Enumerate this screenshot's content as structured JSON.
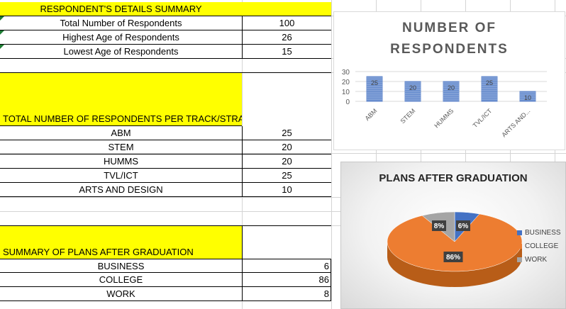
{
  "summary": {
    "header": "RESPONDENT'S DETAILS SUMMARY",
    "rows": [
      {
        "label": "Total Number of Respondents",
        "value": "100"
      },
      {
        "label": "Highest Age of Respondents",
        "value": "26"
      },
      {
        "label": "Lowest Age of Respondents",
        "value": "15"
      }
    ]
  },
  "track": {
    "header": "TOTAL NUMBER OF RESPONDENTS PER TRACK/STRAND",
    "rows": [
      {
        "label": "ABM",
        "value": "25"
      },
      {
        "label": "STEM",
        "value": "20"
      },
      {
        "label": "HUMMS",
        "value": "20"
      },
      {
        "label": "TVL/ICT",
        "value": "25"
      },
      {
        "label": "ARTS AND DESIGN",
        "value": "10"
      }
    ]
  },
  "plans": {
    "header": "SUMMARY OF PLANS AFTER GRADUATION",
    "rows": [
      {
        "label": "BUSINESS",
        "value": "6"
      },
      {
        "label": "COLLEGE",
        "value": "86"
      },
      {
        "label": "WORK",
        "value": "8"
      }
    ]
  },
  "colors": {
    "header_fill": "#ffff00",
    "bar_fill": "#4472c4",
    "business": "#4472c4",
    "college": "#ed7d31",
    "work": "#a5a5a5"
  },
  "chart_data": [
    {
      "type": "bar",
      "title_line1": "NUMBER OF",
      "title_line2": "RESPONDENTS",
      "categories": [
        "ABM",
        "STEM",
        "HUMMS",
        "TVL/ICT",
        "ARTS AND..."
      ],
      "values": [
        25,
        20,
        20,
        25,
        10
      ],
      "yticks": [
        "30",
        "20",
        "10",
        "0"
      ],
      "ylim": [
        0,
        30
      ],
      "grid": true
    },
    {
      "type": "pie",
      "title": "PLANS AFTER GRADUATION",
      "categories": [
        "BUSINESS",
        "COLLEGE",
        "WORK"
      ],
      "values": [
        6,
        86,
        8
      ],
      "labels": [
        "6%",
        "86%",
        "8%"
      ],
      "legend": "right"
    }
  ]
}
